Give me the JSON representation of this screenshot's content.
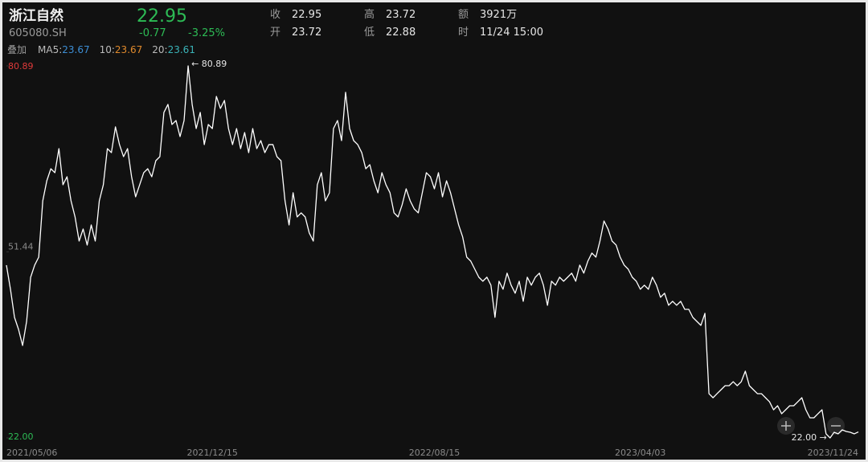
{
  "header": {
    "name": "浙江自然",
    "code": "605080.SH",
    "price": "22.95",
    "change": "-0.77",
    "change_pct": "-3.25%"
  },
  "quote": [
    {
      "label": "收",
      "value": "22.95"
    },
    {
      "label": "高",
      "value": "23.72"
    },
    {
      "label": "额",
      "value": "3921万"
    },
    {
      "label": "开",
      "value": "23.72"
    },
    {
      "label": "低",
      "value": "22.88"
    },
    {
      "label": "时",
      "value": "11/24 15:00"
    }
  ],
  "overlay": {
    "label": "叠加",
    "items": [
      {
        "name": "MA5:",
        "value": "23.67",
        "color": "#3d8fd6"
      },
      {
        "name": "10:",
        "value": "23.67",
        "color": "#e08a2c"
      },
      {
        "name": "20:",
        "value": "23.61",
        "color": "#3ab3b8"
      }
    ]
  },
  "chart_data": {
    "type": "line",
    "color": "#ffffff",
    "ylim": [
      22,
      80.89
    ],
    "yticks": [
      {
        "value": 22,
        "label": "22.00"
      },
      51.44,
      80.89
    ],
    "annotations": [
      "← 80.89",
      "22.00 →"
    ],
    "categories": [
      "2021/05/06",
      null,
      null,
      null,
      null,
      null,
      null,
      null,
      null,
      null,
      null,
      null,
      null,
      null,
      null,
      null,
      null,
      null,
      null,
      null,
      null,
      null,
      null,
      null,
      null,
      null,
      null,
      null,
      null,
      null,
      null,
      null,
      null,
      null,
      null,
      null,
      null,
      null,
      null,
      null,
      null,
      null,
      null,
      null,
      null,
      null,
      null,
      null,
      null,
      null,
      null,
      "2021/12/15",
      null,
      null,
      null,
      null,
      null,
      null,
      null,
      null,
      null,
      null,
      null,
      null,
      null,
      null,
      null,
      null,
      null,
      null,
      null,
      null,
      null,
      null,
      null,
      null,
      null,
      null,
      null,
      null,
      null,
      null,
      null,
      null,
      null,
      null,
      null,
      null,
      null,
      null,
      null,
      null,
      null,
      null,
      null,
      null,
      null,
      null,
      null,
      null,
      null,
      null,
      null,
      null,
      null,
      null,
      "2022/08/15",
      null,
      null,
      null,
      null,
      null,
      null,
      null,
      null,
      null,
      null,
      null,
      null,
      null,
      null,
      null,
      null,
      null,
      null,
      null,
      null,
      null,
      null,
      null,
      null,
      null,
      null,
      null,
      null,
      null,
      null,
      null,
      null,
      null,
      null,
      null,
      null,
      null,
      null,
      null,
      null,
      null,
      null,
      null,
      null,
      null,
      null,
      null,
      null,
      null,
      null,
      "2023/04/03",
      null,
      null,
      null,
      null,
      null,
      null,
      null,
      null,
      null,
      null,
      null,
      null,
      null,
      null,
      null,
      null,
      null,
      null,
      null,
      null,
      null,
      null,
      null,
      null,
      null,
      null,
      null,
      null,
      null,
      null,
      null,
      null,
      null,
      null,
      null,
      null,
      null,
      null,
      null,
      null,
      null,
      null,
      null,
      null,
      null,
      null,
      null,
      null,
      null,
      null,
      null,
      null,
      null,
      "2023/11/24"
    ],
    "values": [
      49.35,
      45.53,
      41.08,
      39.17,
      36.63,
      40.44,
      47.44,
      49.35,
      50.62,
      59.52,
      62.7,
      64.61,
      63.98,
      67.79,
      62.07,
      63.34,
      59.52,
      56.98,
      53.16,
      55.07,
      52.53,
      55.71,
      53.16,
      59.52,
      62.07,
      67.79,
      67.16,
      71.23,
      68.43,
      66.52,
      67.79,
      63.34,
      60.16,
      62.07,
      63.98,
      64.61,
      63.34,
      65.88,
      66.52,
      73.52,
      74.79,
      71.61,
      72.24,
      69.7,
      72.24,
      80.89,
      74.79,
      70.97,
      73.52,
      68.43,
      71.61,
      70.97,
      76.06,
      74.15,
      75.42,
      70.97,
      68.43,
      70.97,
      67.79,
      70.34,
      67.16,
      70.97,
      67.79,
      69.06,
      67.16,
      68.43,
      68.43,
      66.52,
      65.88,
      59.52,
      55.71,
      60.8,
      56.98,
      57.62,
      56.98,
      54.44,
      53.16,
      62.07,
      63.98,
      59.52,
      60.8,
      70.97,
      72.24,
      69.06,
      76.7,
      70.97,
      69.06,
      68.43,
      67.16,
      64.61,
      65.25,
      62.7,
      60.8,
      63.98,
      62.07,
      60.8,
      57.62,
      56.98,
      58.89,
      61.43,
      59.52,
      58.25,
      57.62,
      60.8,
      63.98,
      63.34,
      61.43,
      63.98,
      60.16,
      62.7,
      60.8,
      58.25,
      55.71,
      53.8,
      50.62,
      49.98,
      48.71,
      47.44,
      46.8,
      47.44,
      46.17,
      41.08,
      46.8,
      45.53,
      48.08,
      46.17,
      44.9,
      46.8,
      43.62,
      47.44,
      46.17,
      47.44,
      48.08,
      46.17,
      42.99,
      46.8,
      46.17,
      47.44,
      46.8,
      47.44,
      48.08,
      46.8,
      49.35,
      48.08,
      49.98,
      51.26,
      50.62,
      53.16,
      56.34,
      55.07,
      53.16,
      52.53,
      50.62,
      49.35,
      48.71,
      47.44,
      46.8,
      45.53,
      46.17,
      45.53,
      47.44,
      46.17,
      44.26,
      44.9,
      42.99,
      43.62,
      42.99,
      43.62,
      42.35,
      42.35,
      41.08,
      40.44,
      39.81,
      41.72,
      29.0,
      28.36,
      29.0,
      29.63,
      30.27,
      30.27,
      30.9,
      30.27,
      30.9,
      32.56,
      30.27,
      29.63,
      29.0,
      29.0,
      28.36,
      27.72,
      26.45,
      27.09,
      25.82,
      26.45,
      27.09,
      27.09,
      27.72,
      28.36,
      26.45,
      25.18,
      25.18,
      25.82,
      26.45,
      22.64,
      22.0,
      22.89,
      22.64,
      23.27,
      23.02,
      22.89,
      22.64,
      22.95
    ]
  }
}
